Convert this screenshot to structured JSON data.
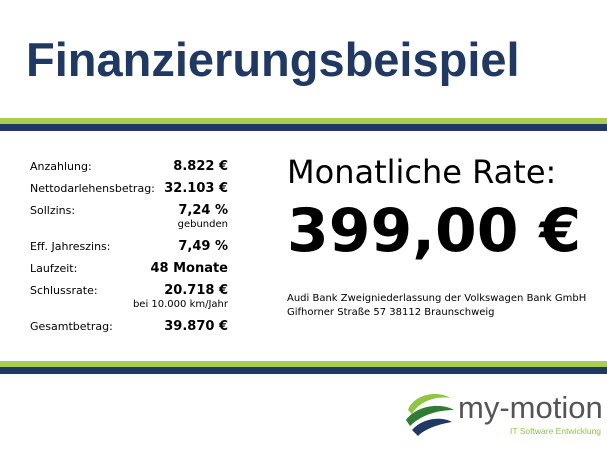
{
  "title": "Finanzierungsbeispiel",
  "details": [
    {
      "label": "Anzahlung:",
      "value": "8.822 €",
      "note": ""
    },
    {
      "label": "Nettodarlehensbetrag:",
      "value": "32.103 €",
      "note": ""
    },
    {
      "label": "Sollzins:",
      "value": "7,24 %",
      "note": "gebunden"
    },
    {
      "label": "Eff. Jahreszins:",
      "value": "7,49 %",
      "note": ""
    },
    {
      "label": "Laufzeit:",
      "value": "48 Monate",
      "note": ""
    },
    {
      "label": "Schlussrate:",
      "value": "20.718 €",
      "note": "bei 10.000 km/Jahr"
    },
    {
      "label": "Gesamtbetrag:",
      "value": "39.870 €",
      "note": ""
    }
  ],
  "monthly": {
    "label": "Monatliche Rate:",
    "value": "399,00 €"
  },
  "lender": {
    "line1": "Audi Bank Zweigniederlassung der Volkswagen Bank GmbH",
    "line2": "Gifhorner Straße 57 38112 Braunschweig"
  },
  "logo": {
    "name": "my-motion",
    "tagline": "IT Software Entwicklung",
    "icon": "swirl-globe-icon"
  },
  "colors": {
    "title": "#1f3864",
    "stripe_green": "#a9cf52",
    "stripe_navy": "#1f3864",
    "logo_green": "#8dc63f"
  }
}
